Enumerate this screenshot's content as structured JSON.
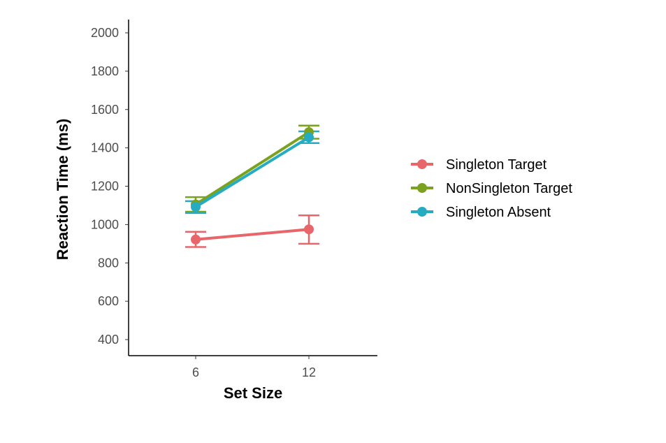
{
  "chart_data": {
    "type": "line",
    "title": "",
    "xlabel": "Set Size",
    "ylabel": "Reaction Time (ms)",
    "categories": [
      "6",
      "12"
    ],
    "ylim": [
      330,
      2100
    ],
    "y_ticks": [
      400,
      600,
      800,
      1000,
      1200,
      1400,
      1600,
      1800,
      2000
    ],
    "grid": false,
    "legend_position": "right",
    "error_bars": true,
    "series": [
      {
        "name": "Singleton Target",
        "color": "#E8666A",
        "values": [
          922,
          975
        ],
        "err_low": [
          883,
          900
        ],
        "err_high": [
          962,
          1048
        ]
      },
      {
        "name": "NonSingleton Target",
        "color": "#7AA21E",
        "values": [
          1105,
          1482
        ],
        "err_low": [
          1067,
          1448
        ],
        "err_high": [
          1143,
          1516
        ]
      },
      {
        "name": "Singleton Absent",
        "color": "#26ACC0",
        "values": [
          1092,
          1455
        ],
        "err_low": [
          1060,
          1425
        ],
        "err_high": [
          1122,
          1486
        ]
      }
    ]
  }
}
